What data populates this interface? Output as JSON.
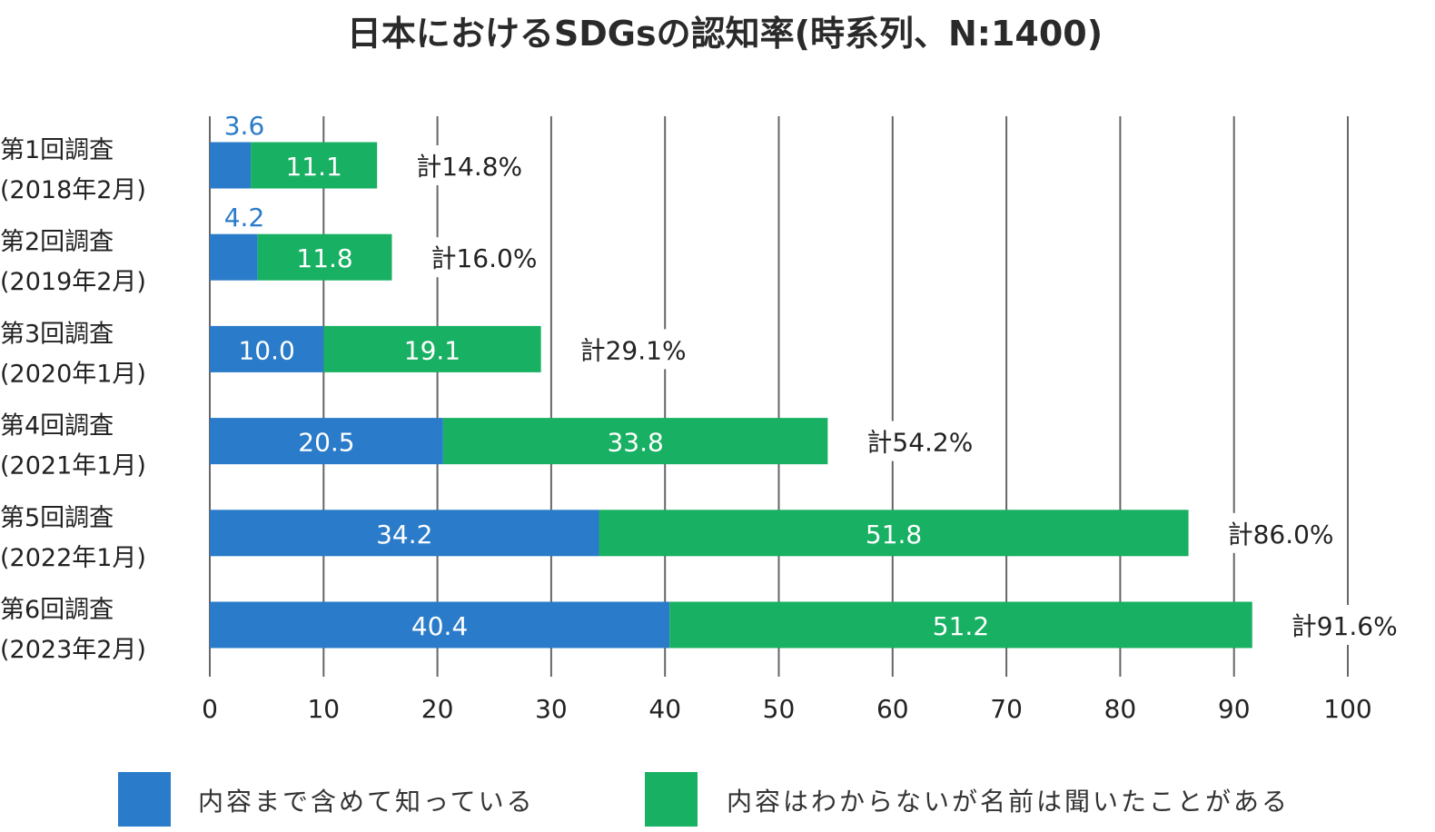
{
  "chart_data": {
    "type": "bar",
    "orientation": "horizontal",
    "stacked": true,
    "title": "日本におけるSDGsの認知率(時系列、N:1400)",
    "categories": [
      [
        "第1回調査",
        "(2018年2月)"
      ],
      [
        "第2回調査",
        "(2019年2月)"
      ],
      [
        "第3回調査",
        "(2020年1月)"
      ],
      [
        "第4回調査",
        "(2021年1月)"
      ],
      [
        "第5回調査",
        "(2022年1月)"
      ],
      [
        "第6回調査",
        "(2023年2月)"
      ]
    ],
    "series": [
      {
        "name": "内容まで含めて知っている",
        "color": "#2a7bc9",
        "values": [
          3.6,
          4.2,
          10.0,
          20.5,
          34.2,
          40.4
        ],
        "labels": [
          "3.6",
          "4.2",
          "10.0",
          "20.5",
          "34.2",
          "40.4"
        ]
      },
      {
        "name": "内容はわからないが名前は聞いたことがある",
        "color": "#18b062",
        "values": [
          11.1,
          11.8,
          19.1,
          33.8,
          51.8,
          51.2
        ],
        "labels": [
          "11.1",
          "11.8",
          "19.1",
          "33.8",
          "51.8",
          "51.2"
        ]
      }
    ],
    "totals": [
      "計14.8%",
      "計16.0%",
      "計29.1%",
      "計54.2%",
      "計86.0%",
      "計91.6%"
    ],
    "xlim": [
      0,
      100
    ],
    "xticks": [
      "0",
      "10",
      "20",
      "30",
      "40",
      "50",
      "60",
      "70",
      "80",
      "90",
      "100"
    ],
    "grid": true,
    "legend": "bottom",
    "xlabel": "",
    "ylabel": ""
  }
}
